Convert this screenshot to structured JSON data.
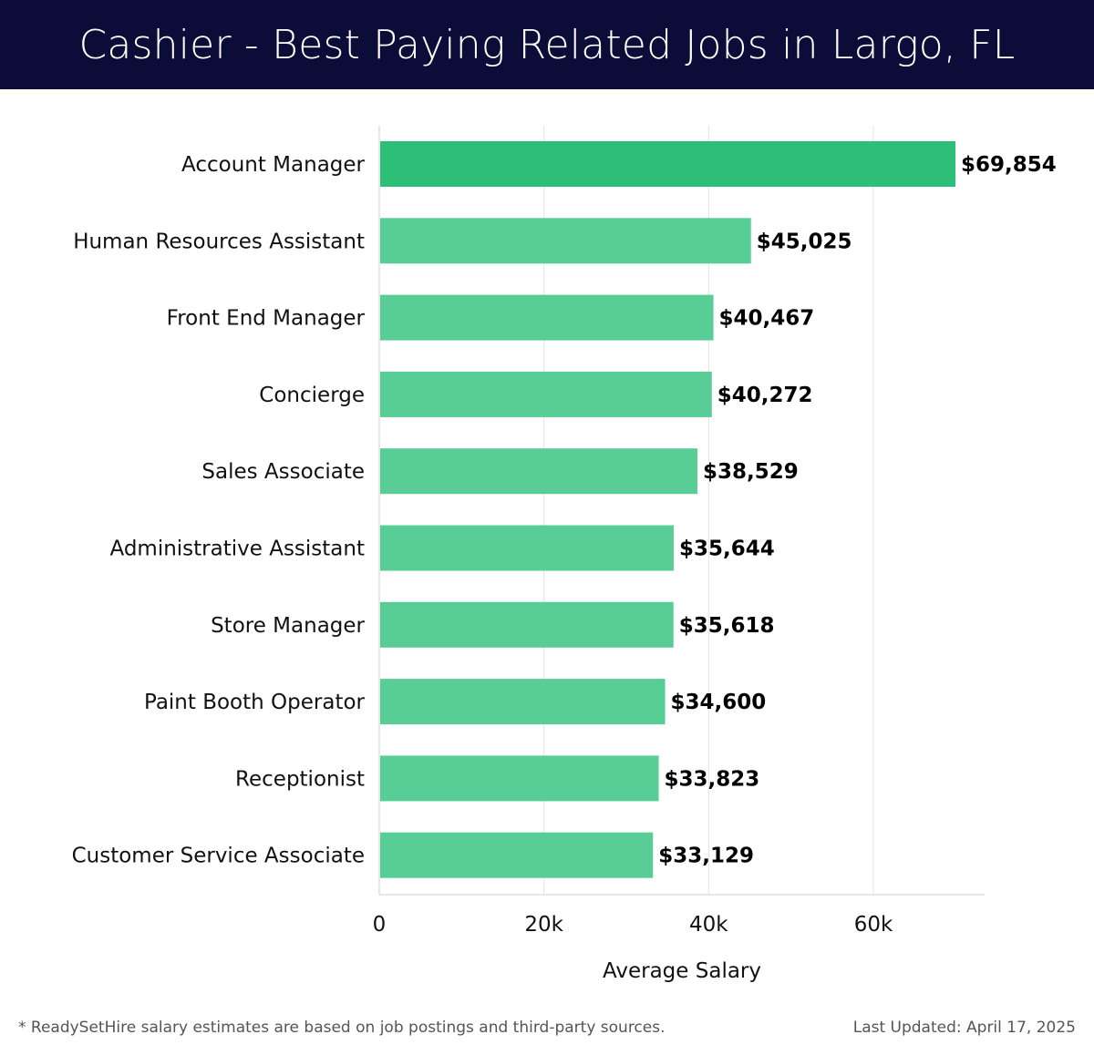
{
  "header": {
    "title": "Cashier - Best Paying Related Jobs in Largo, FL"
  },
  "footer": {
    "note": "* ReadySetHire salary estimates are based on job postings and third-party sources.",
    "last_updated": "Last Updated: April 17, 2025"
  },
  "chart_data": {
    "type": "bar",
    "orientation": "horizontal",
    "xlabel": "Average Salary",
    "ylabel": "",
    "xlim": [
      0,
      73500
    ],
    "grid": true,
    "x_ticks": [
      0,
      20000,
      40000,
      60000
    ],
    "x_tick_labels": [
      "0",
      "20k",
      "40k",
      "60k"
    ],
    "categories": [
      "Account Manager",
      "Human Resources Assistant",
      "Front End Manager",
      "Concierge",
      "Sales Associate",
      "Administrative Assistant",
      "Store Manager",
      "Paint Booth Operator",
      "Receptionist",
      "Customer Service Associate"
    ],
    "values": [
      69854,
      45025,
      40467,
      40272,
      38529,
      35644,
      35618,
      34600,
      33823,
      33129
    ],
    "value_labels": [
      "$69,854",
      "$45,025",
      "$40,467",
      "$40,272",
      "$38,529",
      "$35,644",
      "$35,618",
      "$34,600",
      "$33,823",
      "$33,129"
    ],
    "colors": {
      "highlight": "#2dbf78",
      "bar": "#58cd95",
      "grid": "#e4e4e4",
      "axis": "#cfcfcf"
    }
  }
}
